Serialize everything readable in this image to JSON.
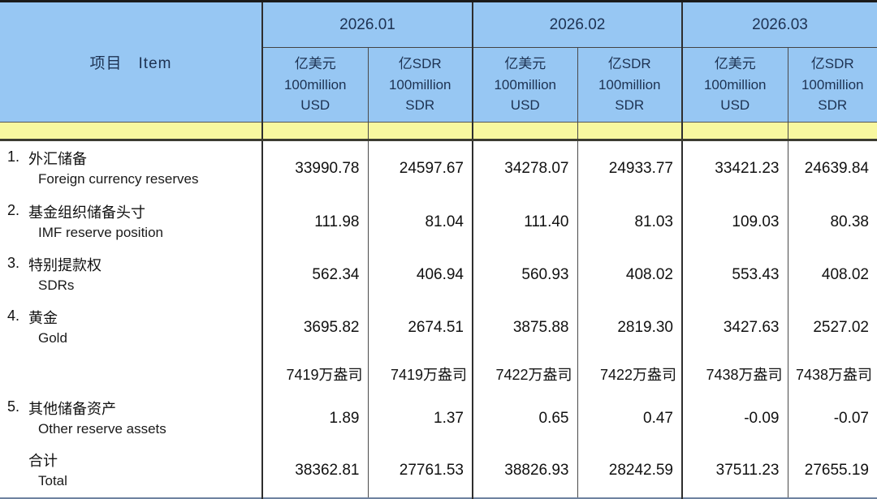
{
  "table": {
    "item_header": "项目　Item",
    "months": [
      "2026.01",
      "2026.02",
      "2026.03"
    ],
    "unit_usd": [
      "亿美元",
      "100million",
      "USD"
    ],
    "unit_sdr": [
      "亿SDR",
      "100million",
      "SDR"
    ],
    "rows": [
      {
        "no": "1.",
        "zh": "外汇储备",
        "en": "Foreign currency reserves",
        "values": [
          "33990.78",
          "24597.67",
          "34278.07",
          "24933.77",
          "33421.23",
          "24639.84"
        ]
      },
      {
        "no": "2.",
        "zh": "基金组织储备头寸",
        "en": "IMF reserve position",
        "values": [
          "111.98",
          "81.04",
          "111.40",
          "81.03",
          "109.03",
          "80.38"
        ]
      },
      {
        "no": "3.",
        "zh": "特别提款权",
        "en": "SDRs",
        "values": [
          "562.34",
          "406.94",
          "560.93",
          "408.02",
          "553.43",
          "408.02"
        ]
      },
      {
        "no": "4.",
        "zh": "黄金",
        "en": "Gold",
        "values": [
          "3695.82",
          "2674.51",
          "3875.88",
          "2819.30",
          "3427.63",
          "2527.02"
        ]
      },
      {
        "no": "",
        "zh": "",
        "en": "",
        "values": [
          "7419万盎司",
          "7419万盎司",
          "7422万盎司",
          "7422万盎司",
          "7438万盎司",
          "7438万盎司"
        ]
      },
      {
        "no": "5.",
        "zh": "其他储备资产",
        "en": "Other reserve assets",
        "values": [
          "1.89",
          "1.37",
          "0.65",
          "0.47",
          "-0.09",
          "-0.07"
        ]
      },
      {
        "no": "",
        "zh": "合计",
        "en": "Total",
        "values": [
          "38362.81",
          "27761.53",
          "38826.93",
          "28242.59",
          "37511.23",
          "27655.19"
        ]
      }
    ]
  },
  "colors": {
    "header_blue": "#97c7f3",
    "band_yellow": "#f8f8a0",
    "header_text": "#1d3252",
    "body_text": "#111111",
    "grid_line": "#2e2e2e"
  }
}
